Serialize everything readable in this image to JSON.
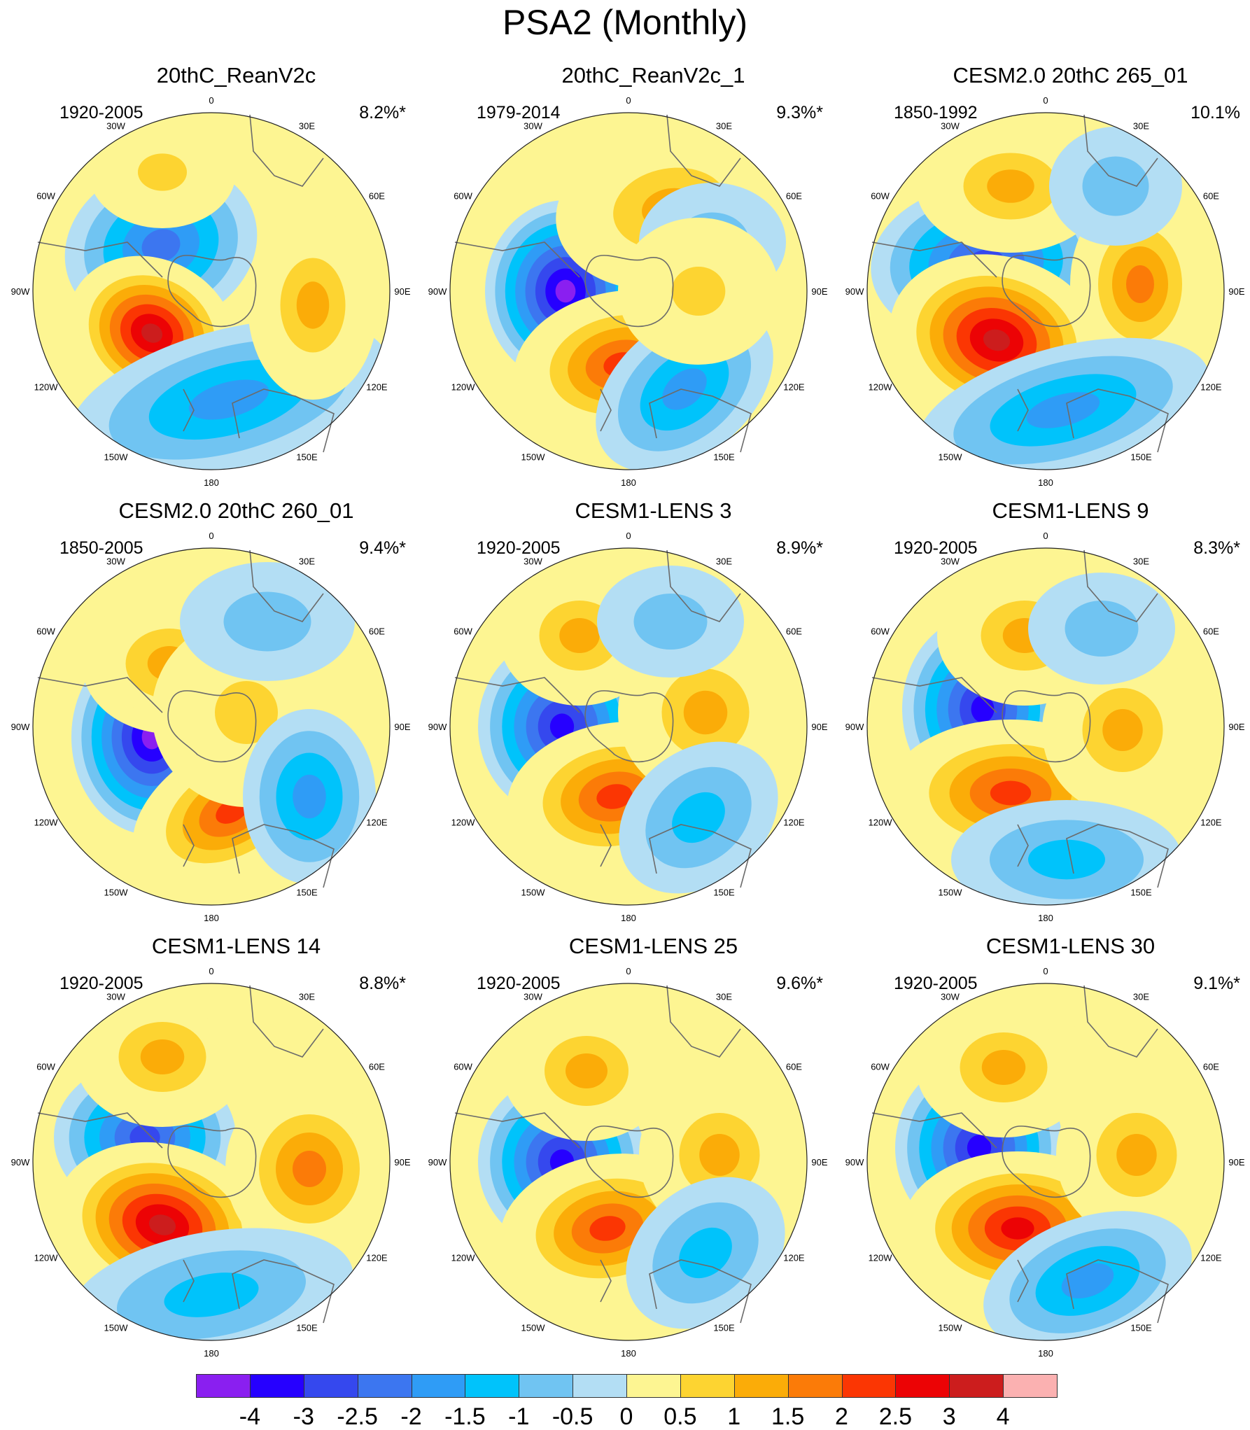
{
  "title": "PSA2 (Monthly)",
  "longitude_labels": [
    "0",
    "30E",
    "60E",
    "90E",
    "120E",
    "150E",
    "180",
    "150W",
    "120W",
    "90W",
    "60W",
    "30W"
  ],
  "panels": [
    {
      "title": "20thC_ReanV2c",
      "years": "1920-2005",
      "percent": "8.2%*"
    },
    {
      "title": "20thC_ReanV2c_1",
      "years": "1979-2014",
      "percent": "9.3%*"
    },
    {
      "title": "CESM2.0 20thC 265_01",
      "years": "1850-1992",
      "percent": "10.1%"
    },
    {
      "title": "CESM2.0 20thC 260_01",
      "years": "1850-2005",
      "percent": "9.4%*"
    },
    {
      "title": "CESM1-LENS 3",
      "years": "1920-2005",
      "percent": "8.9%*"
    },
    {
      "title": "CESM1-LENS 9",
      "years": "1920-2005",
      "percent": "8.3%*"
    },
    {
      "title": "CESM1-LENS 14",
      "years": "1920-2005",
      "percent": "8.8%*"
    },
    {
      "title": "CESM1-LENS 25",
      "years": "1920-2005",
      "percent": "9.6%*"
    },
    {
      "title": "CESM1-LENS 30",
      "years": "1920-2005",
      "percent": "9.1%*"
    }
  ],
  "colorbar": {
    "colors": [
      "#8a1ff0",
      "#2600ff",
      "#3548ee",
      "#3c76f0",
      "#2f9cf6",
      "#00c3fb",
      "#70c4f2",
      "#b3def4",
      "#fdf592",
      "#fdd431",
      "#fbac08",
      "#fb7b08",
      "#fb3603",
      "#ec0305",
      "#cc1d1d",
      "#fbb1b1"
    ],
    "labels": [
      "-4",
      "-3",
      "-2.5",
      "-2",
      "-1.5",
      "-1",
      "-0.5",
      "0",
      "0.5",
      "1",
      "1.5",
      "2",
      "2.5",
      "3",
      "4"
    ]
  },
  "chart_data": {
    "type": "polar-contour",
    "title": "PSA2 (Monthly)",
    "levels": [
      -4,
      -3,
      -2.5,
      -2,
      -1.5,
      -1,
      -0.5,
      0,
      0.5,
      1,
      1.5,
      2,
      2.5,
      3,
      4
    ],
    "panel_count": 9
  }
}
